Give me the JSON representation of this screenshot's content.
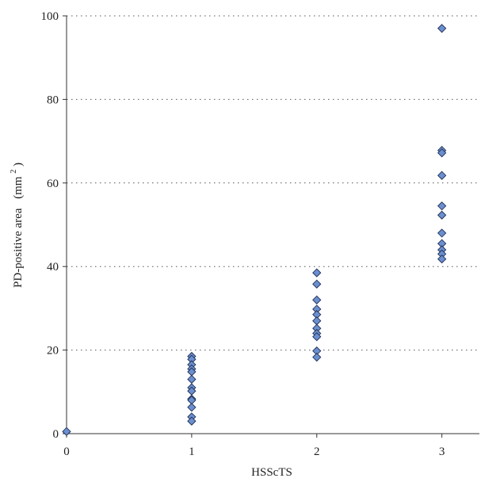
{
  "chart_data": {
    "type": "scatter",
    "title": "",
    "xlabel": "HSScTS",
    "ylabel": "PD-positive area",
    "ylabel_unit": "(mm",
    "ylabel_unit_sup": "2",
    "ylabel_unit_close": ")",
    "xlim": [
      0,
      3.3
    ],
    "ylim": [
      0,
      100
    ],
    "x_ticks": [
      0,
      1,
      2,
      3
    ],
    "y_ticks": [
      0,
      20,
      40,
      60,
      80,
      100
    ],
    "x_tick_labels": [
      "0",
      "1",
      "2",
      "3"
    ],
    "y_tick_labels": [
      "0",
      "20",
      "40",
      "60",
      "80",
      "100"
    ],
    "grid": "horizontal-dotted",
    "marker": "diamond",
    "marker_color": "#6b8fce",
    "marker_edge": "#1f2f55",
    "points": [
      {
        "x": 0,
        "y": 0.5
      },
      {
        "x": 1,
        "y": 18.5
      },
      {
        "x": 1,
        "y": 17.8
      },
      {
        "x": 1,
        "y": 16.5
      },
      {
        "x": 1,
        "y": 15.5
      },
      {
        "x": 1,
        "y": 14.8
      },
      {
        "x": 1,
        "y": 13.0
      },
      {
        "x": 1,
        "y": 11.0
      },
      {
        "x": 1,
        "y": 10.2
      },
      {
        "x": 1,
        "y": 8.3
      },
      {
        "x": 1,
        "y": 8.0
      },
      {
        "x": 1,
        "y": 6.3
      },
      {
        "x": 1,
        "y": 4.0
      },
      {
        "x": 1,
        "y": 3.0
      },
      {
        "x": 2,
        "y": 38.5
      },
      {
        "x": 2,
        "y": 35.8
      },
      {
        "x": 2,
        "y": 32.0
      },
      {
        "x": 2,
        "y": 29.8
      },
      {
        "x": 2,
        "y": 28.5
      },
      {
        "x": 2,
        "y": 27.0
      },
      {
        "x": 2,
        "y": 25.2
      },
      {
        "x": 2,
        "y": 24.0
      },
      {
        "x": 2,
        "y": 23.2
      },
      {
        "x": 2,
        "y": 19.8
      },
      {
        "x": 2,
        "y": 18.3
      },
      {
        "x": 3,
        "y": 97.0
      },
      {
        "x": 3,
        "y": 67.8
      },
      {
        "x": 3,
        "y": 67.2
      },
      {
        "x": 3,
        "y": 61.8
      },
      {
        "x": 3,
        "y": 54.5
      },
      {
        "x": 3,
        "y": 52.3
      },
      {
        "x": 3,
        "y": 48.0
      },
      {
        "x": 3,
        "y": 45.5
      },
      {
        "x": 3,
        "y": 44.0
      },
      {
        "x": 3,
        "y": 43.0
      },
      {
        "x": 3,
        "y": 41.8
      }
    ]
  }
}
